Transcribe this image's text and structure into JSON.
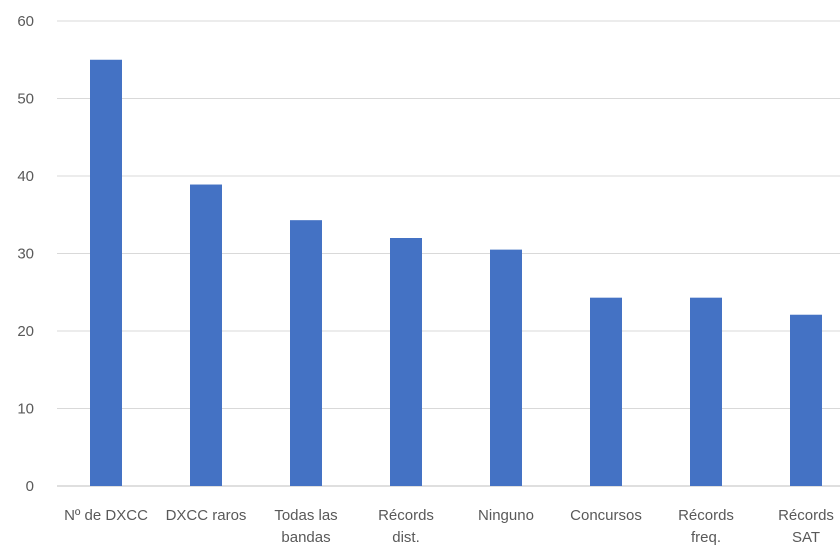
{
  "chart_data": {
    "type": "bar",
    "title": "",
    "xlabel": "",
    "ylabel": "",
    "ylim": [
      0,
      60
    ],
    "yticks": [
      0,
      10,
      20,
      30,
      40,
      50,
      60
    ],
    "grid": true,
    "legend": "none",
    "bar_color": "#4472c4",
    "categories": [
      [
        "Nº de DXCC"
      ],
      [
        "DXCC raros"
      ],
      [
        "Todas las",
        "bandas"
      ],
      [
        "Récords",
        "dist."
      ],
      [
        "Ninguno"
      ],
      [
        "Concursos"
      ],
      [
        "Récords",
        "freq."
      ],
      [
        "Récords",
        "SAT"
      ]
    ],
    "values": [
      55,
      38.9,
      34.3,
      32,
      30.5,
      24.3,
      24.3,
      22.1
    ]
  }
}
